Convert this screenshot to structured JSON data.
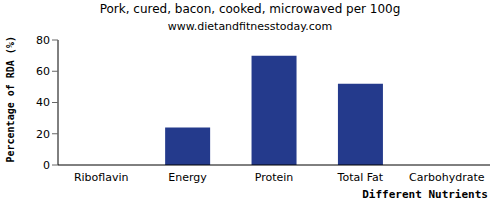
{
  "chart_data": {
    "type": "bar",
    "title": "Pork, cured, bacon, cooked, microwaved per 100g",
    "subtitle": "www.dietandfitnesstoday.com",
    "x_label": "Different Nutrients",
    "y_label": "Percentage of RDA (%)",
    "categories": [
      "Riboflavin",
      "Energy",
      "Protein",
      "Total Fat",
      "Carbohydrate"
    ],
    "values": [
      0,
      24,
      70,
      52,
      0
    ],
    "color": "#243a8c",
    "ylim": [
      0,
      80
    ],
    "yticks": [
      0,
      20,
      40,
      60,
      80
    ],
    "grid": false
  }
}
